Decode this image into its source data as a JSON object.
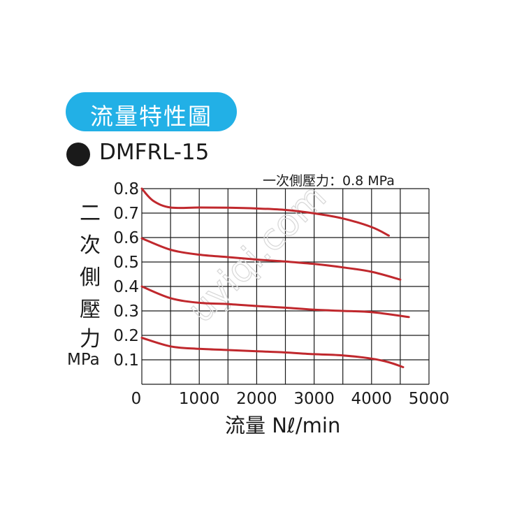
{
  "header": {
    "title": "流量特性圖",
    "model_bullet_icon": "filled-circle-icon",
    "model": "DMFRL-15",
    "condition": "一次側壓力：0.8 MPa"
  },
  "colors": {
    "title_bg": "#22b0e6",
    "title_text": "#ffffff",
    "curve": "#c0282d",
    "grid": "#1a1a1a",
    "watermark": "#d9d9d9"
  },
  "watermark": "uyiqi.com",
  "chart_data": {
    "type": "line",
    "title": "流量特性圖",
    "subtitle": "DMFRL-15",
    "annotation": "一次側壓力：0.8 MPa",
    "xlabel": "流量 Nℓ/min",
    "ylabel_chars": [
      "二",
      "次",
      "側",
      "壓",
      "力"
    ],
    "ylabel_unit": "MPa",
    "xlim": [
      0,
      5000
    ],
    "ylim": [
      0,
      0.8
    ],
    "x_ticks": [
      "0",
      "1000",
      "2000",
      "3000",
      "4000",
      "5000"
    ],
    "y_ticks": [
      "0.1",
      "0.2",
      "0.3",
      "0.4",
      "0.5",
      "0.6",
      "0.7",
      "0.8"
    ],
    "grid": true,
    "series": [
      {
        "points": [
          [
            0,
            0.8
          ],
          [
            200,
            0.75
          ],
          [
            500,
            0.723
          ],
          [
            1000,
            0.723
          ],
          [
            1500,
            0.722
          ],
          [
            2000,
            0.719
          ],
          [
            2500,
            0.713
          ],
          [
            3000,
            0.699
          ],
          [
            3500,
            0.678
          ],
          [
            4000,
            0.643
          ],
          [
            4300,
            0.608
          ]
        ]
      },
      {
        "points": [
          [
            0,
            0.597
          ],
          [
            500,
            0.55
          ],
          [
            1000,
            0.53
          ],
          [
            1500,
            0.52
          ],
          [
            2000,
            0.51
          ],
          [
            2500,
            0.502
          ],
          [
            3000,
            0.492
          ],
          [
            3500,
            0.478
          ],
          [
            4000,
            0.46
          ],
          [
            4500,
            0.428
          ]
        ]
      },
      {
        "points": [
          [
            0,
            0.4
          ],
          [
            500,
            0.352
          ],
          [
            1000,
            0.333
          ],
          [
            1500,
            0.328
          ],
          [
            2000,
            0.32
          ],
          [
            2500,
            0.313
          ],
          [
            3000,
            0.305
          ],
          [
            3500,
            0.3
          ],
          [
            4000,
            0.295
          ],
          [
            4650,
            0.275
          ]
        ]
      },
      {
        "points": [
          [
            0,
            0.19
          ],
          [
            500,
            0.155
          ],
          [
            1000,
            0.145
          ],
          [
            1500,
            0.14
          ],
          [
            2000,
            0.135
          ],
          [
            2500,
            0.13
          ],
          [
            3000,
            0.123
          ],
          [
            3500,
            0.118
          ],
          [
            4000,
            0.105
          ],
          [
            4300,
            0.09
          ],
          [
            4550,
            0.07
          ]
        ]
      }
    ]
  }
}
